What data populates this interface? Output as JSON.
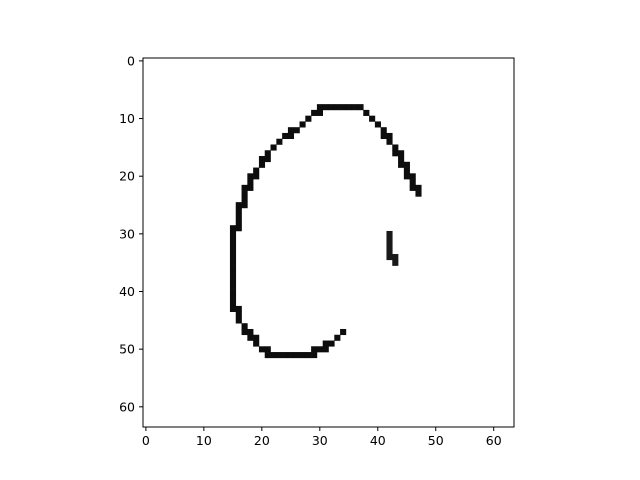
{
  "figure": {
    "background": "#ffffff",
    "axis_color": "#000000",
    "cmap": "gray_r"
  },
  "chart_data": {
    "type": "heatmap",
    "title": "",
    "xlabel": "",
    "ylabel": "",
    "grid": false,
    "image_size": [
      64,
      64
    ],
    "xlim": [
      -0.5,
      63.5
    ],
    "ylim": [
      63.5,
      -0.5
    ],
    "x_ticks": [
      0,
      10,
      20,
      30,
      40,
      50,
      60
    ],
    "y_ticks": [
      0,
      10,
      20,
      30,
      40,
      50,
      60
    ],
    "x_tick_labels": [
      "0",
      "10",
      "20",
      "30",
      "40",
      "50",
      "60"
    ],
    "y_tick_labels": [
      "0",
      "10",
      "20",
      "30",
      "40",
      "50",
      "60"
    ],
    "strokes": [
      {
        "name": "outer arc",
        "intensity": 0.95,
        "points": [
          [
            47,
            23
          ],
          [
            46,
            21
          ],
          [
            45,
            19
          ],
          [
            44,
            17
          ],
          [
            43,
            15
          ],
          [
            42,
            14
          ],
          [
            41,
            12
          ],
          [
            40,
            11
          ],
          [
            39,
            10
          ],
          [
            38,
            9
          ],
          [
            37,
            8
          ],
          [
            36,
            8
          ],
          [
            35,
            7.5
          ],
          [
            34,
            7.5
          ],
          [
            33,
            7.5
          ],
          [
            32,
            8
          ],
          [
            31,
            8
          ],
          [
            30,
            8.5
          ],
          [
            29,
            9
          ],
          [
            28,
            10
          ],
          [
            27,
            11
          ],
          [
            26,
            12
          ],
          [
            25,
            12.5
          ],
          [
            24,
            13
          ],
          [
            23,
            14
          ],
          [
            22,
            15
          ],
          [
            21,
            16
          ],
          [
            20,
            18
          ],
          [
            19,
            19
          ],
          [
            18,
            21
          ],
          [
            17,
            23
          ],
          [
            16.5,
            25
          ],
          [
            16,
            27
          ],
          [
            15.5,
            29
          ],
          [
            15,
            31
          ],
          [
            15,
            33
          ],
          [
            15,
            35
          ],
          [
            15,
            37
          ],
          [
            15,
            39
          ],
          [
            15,
            41
          ],
          [
            15.5,
            43
          ],
          [
            16,
            45
          ],
          [
            17,
            46
          ],
          [
            18,
            47.5
          ],
          [
            19,
            49
          ],
          [
            20,
            50
          ],
          [
            21,
            50.5
          ],
          [
            22,
            51
          ],
          [
            23,
            51
          ],
          [
            24,
            51
          ],
          [
            25,
            51
          ],
          [
            26,
            51
          ],
          [
            27,
            51
          ],
          [
            28,
            50.5
          ],
          [
            29,
            50.5
          ],
          [
            30,
            50
          ],
          [
            31,
            49.5
          ],
          [
            32,
            49
          ],
          [
            33,
            48
          ],
          [
            34,
            47
          ]
        ]
      },
      {
        "name": "inner tick",
        "intensity": 0.9,
        "points": [
          [
            41.5,
            30
          ],
          [
            42,
            31
          ],
          [
            42,
            32
          ],
          [
            42,
            33
          ],
          [
            42.5,
            34
          ],
          [
            43,
            35
          ]
        ]
      }
    ]
  }
}
